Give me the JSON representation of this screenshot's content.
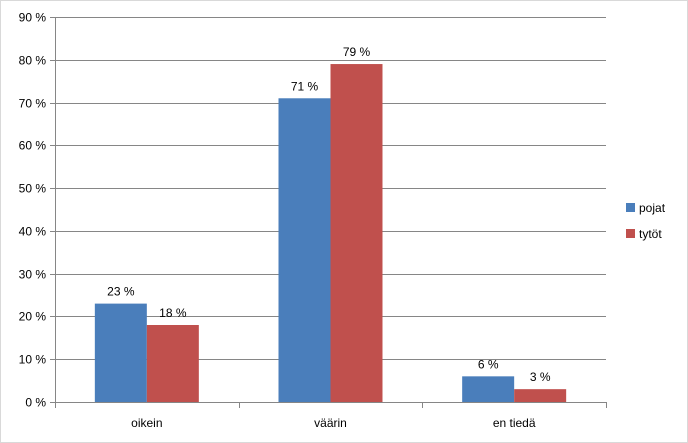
{
  "chart_data": {
    "type": "bar",
    "categories": [
      "oikein",
      "väärin",
      "en tiedä"
    ],
    "series": [
      {
        "name": "pojat",
        "values": [
          23,
          71,
          6
        ],
        "labels": [
          "23 %",
          "71 %",
          "6 %"
        ],
        "color": "#4a7ebb"
      },
      {
        "name": "tytöt",
        "values": [
          18,
          79,
          3
        ],
        "labels": [
          "18 %",
          "79 %",
          "3 %"
        ],
        "color": "#c0504d"
      }
    ],
    "ylim": [
      0,
      90
    ],
    "yticks": [
      0,
      10,
      20,
      30,
      40,
      50,
      60,
      70,
      80,
      90
    ],
    "ytick_labels": [
      "0 %",
      "10 %",
      "20 %",
      "30 %",
      "40 %",
      "50 %",
      "60 %",
      "70 %",
      "80 %",
      "90 %"
    ],
    "grid": true,
    "legend_position": "right",
    "title": "",
    "xlabel": "",
    "ylabel": ""
  }
}
